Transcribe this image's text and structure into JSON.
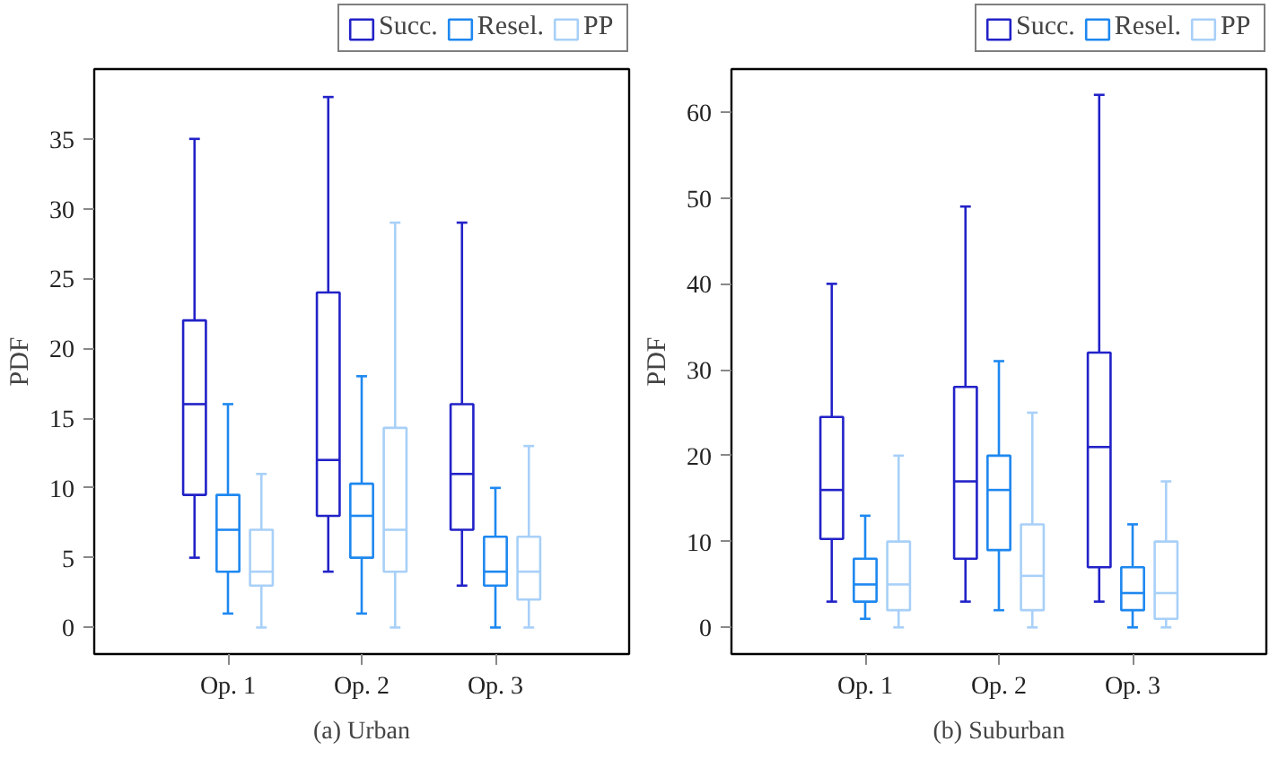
{
  "chart_data": [
    {
      "type": "box",
      "title": "(a) Urban",
      "ylabel": "PDF",
      "categories": [
        "Op. 1",
        "Op. 2",
        "Op. 3"
      ],
      "ylim": [
        -1.9,
        40
      ],
      "yticks": [
        0,
        5,
        10,
        15,
        20,
        25,
        30,
        35
      ],
      "grid": false,
      "legend": "top right",
      "series": [
        {
          "name": "Succ.",
          "color": "#2222c8",
          "boxes": [
            {
              "low": 5,
              "q1": 9.5,
              "median": 16,
              "q3": 22,
              "high": 35
            },
            {
              "low": 4,
              "q1": 8,
              "median": 12,
              "q3": 24,
              "high": 38
            },
            {
              "low": 3,
              "q1": 7,
              "median": 11,
              "q3": 16,
              "high": 29
            }
          ]
        },
        {
          "name": "Resel.",
          "color": "#1e88f0",
          "boxes": [
            {
              "low": 1,
              "q1": 4,
              "median": 7,
              "q3": 9.5,
              "high": 16
            },
            {
              "low": 1,
              "q1": 5,
              "median": 8,
              "q3": 10.3,
              "high": 18
            },
            {
              "low": 0,
              "q1": 3,
              "median": 4,
              "q3": 6.5,
              "high": 10
            }
          ]
        },
        {
          "name": "PP",
          "color": "#a8d0f8",
          "boxes": [
            {
              "low": 0,
              "q1": 3,
              "median": 4,
              "q3": 7,
              "high": 11
            },
            {
              "low": 0,
              "q1": 4,
              "median": 7,
              "q3": 14.3,
              "high": 29
            },
            {
              "low": 0,
              "q1": 2,
              "median": 4,
              "q3": 6.5,
              "high": 13
            }
          ]
        }
      ]
    },
    {
      "type": "box",
      "title": "(b) Suburban",
      "ylabel": "PDF",
      "categories": [
        "Op. 1",
        "Op. 2",
        "Op. 3"
      ],
      "ylim": [
        -3.1,
        65
      ],
      "yticks": [
        0,
        10,
        20,
        30,
        40,
        50,
        60
      ],
      "grid": false,
      "legend": "top right",
      "series": [
        {
          "name": "Succ.",
          "color": "#2222c8",
          "boxes": [
            {
              "low": 3,
              "q1": 10.3,
              "median": 16,
              "q3": 24.5,
              "high": 40
            },
            {
              "low": 3,
              "q1": 8,
              "median": 17,
              "q3": 28,
              "high": 49
            },
            {
              "low": 3,
              "q1": 7,
              "median": 21,
              "q3": 32,
              "high": 62
            }
          ]
        },
        {
          "name": "Resel.",
          "color": "#1e88f0",
          "boxes": [
            {
              "low": 1,
              "q1": 3,
              "median": 5,
              "q3": 8,
              "high": 13
            },
            {
              "low": 2,
              "q1": 9,
              "median": 16,
              "q3": 20,
              "high": 31
            },
            {
              "low": 0,
              "q1": 2,
              "median": 4,
              "q3": 7,
              "high": 12
            }
          ]
        },
        {
          "name": "PP",
          "color": "#a8d0f8",
          "boxes": [
            {
              "low": 0,
              "q1": 2,
              "median": 5,
              "q3": 10,
              "high": 20
            },
            {
              "low": 0,
              "q1": 2,
              "median": 6,
              "q3": 12,
              "high": 25
            },
            {
              "low": 0,
              "q1": 1,
              "median": 4,
              "q3": 10,
              "high": 17
            }
          ]
        }
      ]
    }
  ]
}
